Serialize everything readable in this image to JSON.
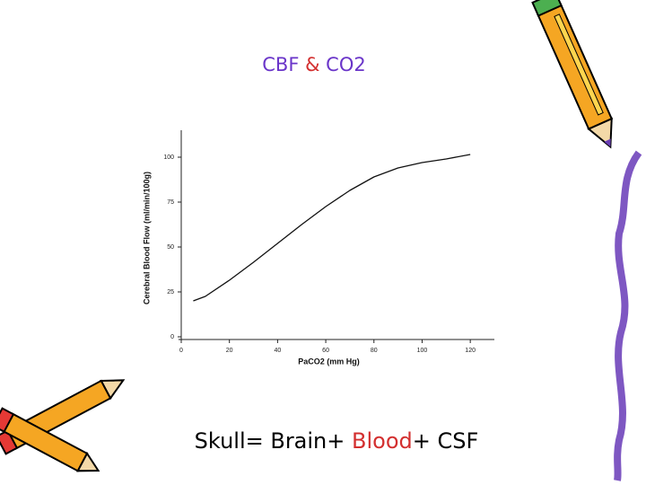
{
  "slide": {
    "title_parts": [
      "CBF",
      "&",
      "CO2"
    ],
    "caption_parts": [
      "Skull= Brain+",
      "Blood",
      "+ CSF"
    ]
  },
  "chart_data": {
    "type": "line",
    "x_label": "PaCO2 (mm Hg)",
    "y_label": "Cerebral Blood Flow (ml/min/100g)",
    "x": [
      5,
      10,
      20,
      30,
      40,
      50,
      60,
      70,
      80,
      90,
      100,
      110,
      120
    ],
    "series": [
      {
        "color": "#111111",
        "values": [
          20,
          22.5,
          31.5,
          41.5,
          52,
          62.5,
          72.5,
          81.5,
          89,
          94,
          97,
          99,
          101.5
        ]
      }
    ],
    "xlim": [
      0,
      130
    ],
    "ylim": [
      0,
      115
    ],
    "xticks": [
      0,
      20,
      40,
      60,
      80,
      100,
      120
    ],
    "yticks": [
      0,
      25,
      50,
      75,
      100
    ]
  }
}
